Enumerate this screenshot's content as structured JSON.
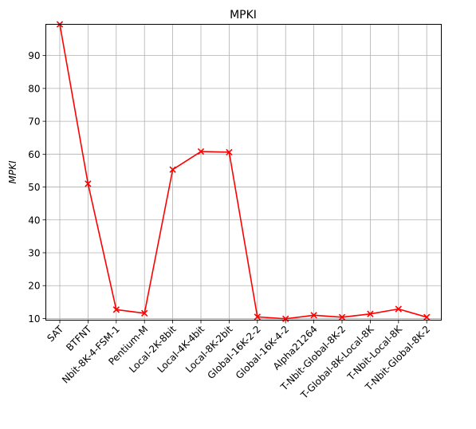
{
  "chart_data": {
    "type": "line",
    "title": "MPKI",
    "xlabel": "",
    "ylabel": "MPKI",
    "ylim": [
      9.5,
      99.5
    ],
    "yticks": [
      10,
      20,
      30,
      40,
      50,
      60,
      70,
      80,
      90
    ],
    "grid": true,
    "marker": "x",
    "line_color": "#ff0000",
    "categories": [
      "SAT",
      "BTFNT",
      "Nbit-8K-4-FSM-1",
      "Pentium-M",
      "Local-2K-8bit",
      "Local-4K-4bit",
      "Local-8K-2bit",
      "Global-16K-2-2",
      "Global-16K-4-2",
      "Alpha21264",
      "T-Nbit-Global-8K-2",
      "T-Global-8K-Local-8K",
      "T-Nbit-Local-8K",
      "T-Nbit-Global-8K-2"
    ],
    "values": [
      99.5,
      51.0,
      12.7,
      11.6,
      55.3,
      60.8,
      60.6,
      10.5,
      9.9,
      11.0,
      10.4,
      11.4,
      12.9,
      10.4
    ]
  }
}
